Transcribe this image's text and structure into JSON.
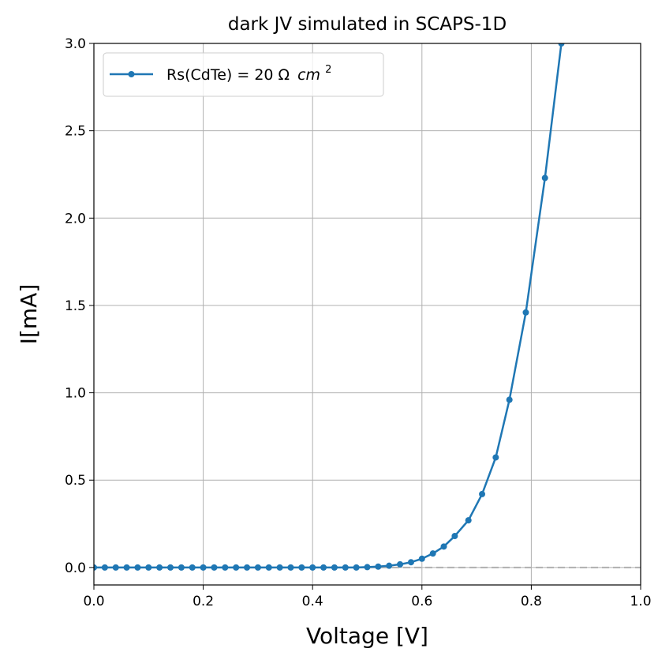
{
  "chart_data": {
    "type": "line",
    "title": "dark JV simulated in SCAPS-1D",
    "xlabel": "Voltage [V]",
    "ylabel": "I[mA]",
    "xlim": [
      0.0,
      1.0
    ],
    "ylim": [
      -0.1,
      3.0
    ],
    "xticks": [
      "0.0",
      "0.2",
      "0.4",
      "0.6",
      "0.8",
      "1.0"
    ],
    "yticks": [
      "0.0",
      "0.5",
      "1.0",
      "1.5",
      "2.0",
      "2.5",
      "3.0"
    ],
    "grid": true,
    "legend_position": "top-left",
    "reference_line": {
      "y": 0,
      "style": "dashed",
      "color": "#b0b0b0"
    },
    "series": [
      {
        "name": "Rs(CdTe) = 20 Ω cm²",
        "legend_prefix": "Rs(CdTe) = 20 Ω",
        "legend_unit": "cm",
        "legend_exp": "2",
        "color": "#1f77b4",
        "marker": "circle",
        "x": [
          0.0,
          0.02,
          0.04,
          0.06,
          0.08,
          0.1,
          0.12,
          0.14,
          0.16,
          0.18,
          0.2,
          0.22,
          0.24,
          0.26,
          0.28,
          0.3,
          0.32,
          0.34,
          0.36,
          0.38,
          0.4,
          0.42,
          0.44,
          0.46,
          0.48,
          0.5,
          0.52,
          0.54,
          0.56,
          0.58,
          0.6,
          0.62,
          0.64,
          0.66,
          0.685,
          0.71,
          0.735,
          0.76,
          0.79,
          0.825,
          0.855
        ],
        "y": [
          0.0,
          0.0,
          0.0,
          0.0,
          0.0,
          0.0,
          0.0,
          0.0,
          0.0,
          0.0,
          0.0,
          0.0,
          0.0,
          0.0,
          0.0,
          0.0,
          0.0,
          0.0,
          0.0,
          0.0,
          0.0,
          0.0,
          0.0,
          0.0,
          0.0,
          0.002,
          0.005,
          0.01,
          0.018,
          0.03,
          0.05,
          0.08,
          0.12,
          0.18,
          0.27,
          0.42,
          0.63,
          0.96,
          1.46,
          2.23,
          3.0
        ]
      }
    ]
  }
}
